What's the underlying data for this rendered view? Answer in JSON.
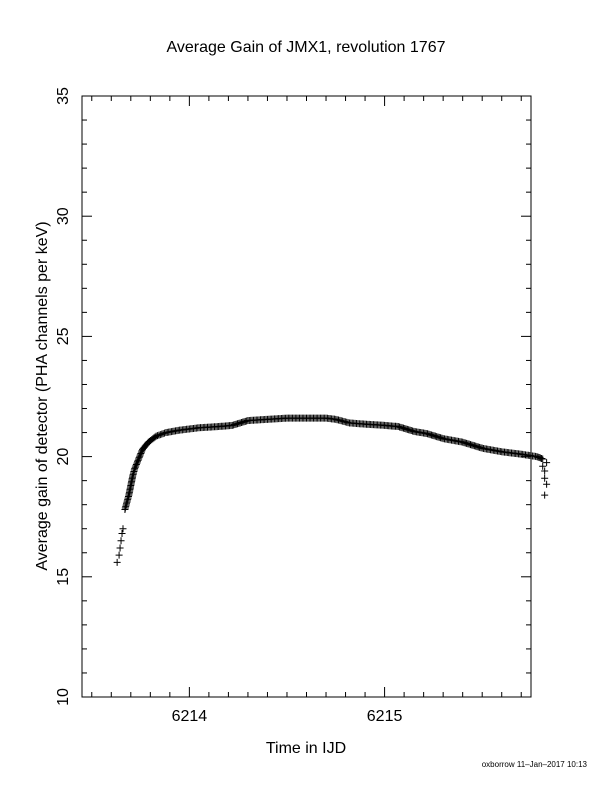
{
  "chart_data": {
    "type": "scatter",
    "title": "Average Gain of JMX1, revolution 1767",
    "xlabel": "Time in IJD",
    "ylabel": "Average gain of detector (PHA channels per keV)",
    "credit": "oxborrow 11–Jan–2017 10:13",
    "xlim": [
      6213.45,
      6215.75
    ],
    "ylim": [
      10,
      35
    ],
    "x_ticks": [
      6214,
      6215
    ],
    "x_tick_labels": [
      "6214",
      "6215"
    ],
    "y_ticks": [
      10,
      15,
      20,
      25,
      30,
      35
    ],
    "y_tick_labels": [
      "10",
      "15",
      "20",
      "25",
      "30",
      "35"
    ],
    "grid": false,
    "marker": "+",
    "color": "#000000",
    "curve_points": [
      [
        6213.63,
        15.6
      ],
      [
        6213.64,
        15.9
      ],
      [
        6213.645,
        16.2
      ],
      [
        6213.65,
        16.5
      ],
      [
        6213.655,
        16.8
      ],
      [
        6213.66,
        17.0
      ],
      [
        6213.67,
        17.8
      ],
      [
        6213.68,
        18.1
      ],
      [
        6213.69,
        18.4
      ],
      [
        6213.7,
        18.8
      ],
      [
        6213.71,
        19.2
      ],
      [
        6213.72,
        19.5
      ],
      [
        6213.74,
        19.9
      ],
      [
        6213.76,
        20.3
      ],
      [
        6213.79,
        20.6
      ],
      [
        6213.83,
        20.85
      ],
      [
        6213.88,
        21.0
      ],
      [
        6213.95,
        21.1
      ],
      [
        6214.05,
        21.2
      ],
      [
        6214.15,
        21.25
      ],
      [
        6214.22,
        21.3
      ],
      [
        6214.3,
        21.5
      ],
      [
        6214.4,
        21.55
      ],
      [
        6214.5,
        21.6
      ],
      [
        6214.6,
        21.6
      ],
      [
        6214.7,
        21.6
      ],
      [
        6214.75,
        21.55
      ],
      [
        6214.82,
        21.4
      ],
      [
        6214.9,
        21.35
      ],
      [
        6215.0,
        21.3
      ],
      [
        6215.07,
        21.25
      ],
      [
        6215.15,
        21.05
      ],
      [
        6215.22,
        20.95
      ],
      [
        6215.3,
        20.75
      ],
      [
        6215.4,
        20.6
      ],
      [
        6215.5,
        20.35
      ],
      [
        6215.6,
        20.2
      ],
      [
        6215.7,
        20.1
      ],
      [
        6215.78,
        20.0
      ],
      [
        6215.81,
        19.9
      ]
    ],
    "end_points": [
      [
        6215.81,
        19.6
      ],
      [
        6215.82,
        19.4
      ],
      [
        6215.82,
        19.1
      ],
      [
        6215.83,
        18.85
      ],
      [
        6215.82,
        18.4
      ],
      [
        6215.83,
        19.75
      ]
    ]
  }
}
